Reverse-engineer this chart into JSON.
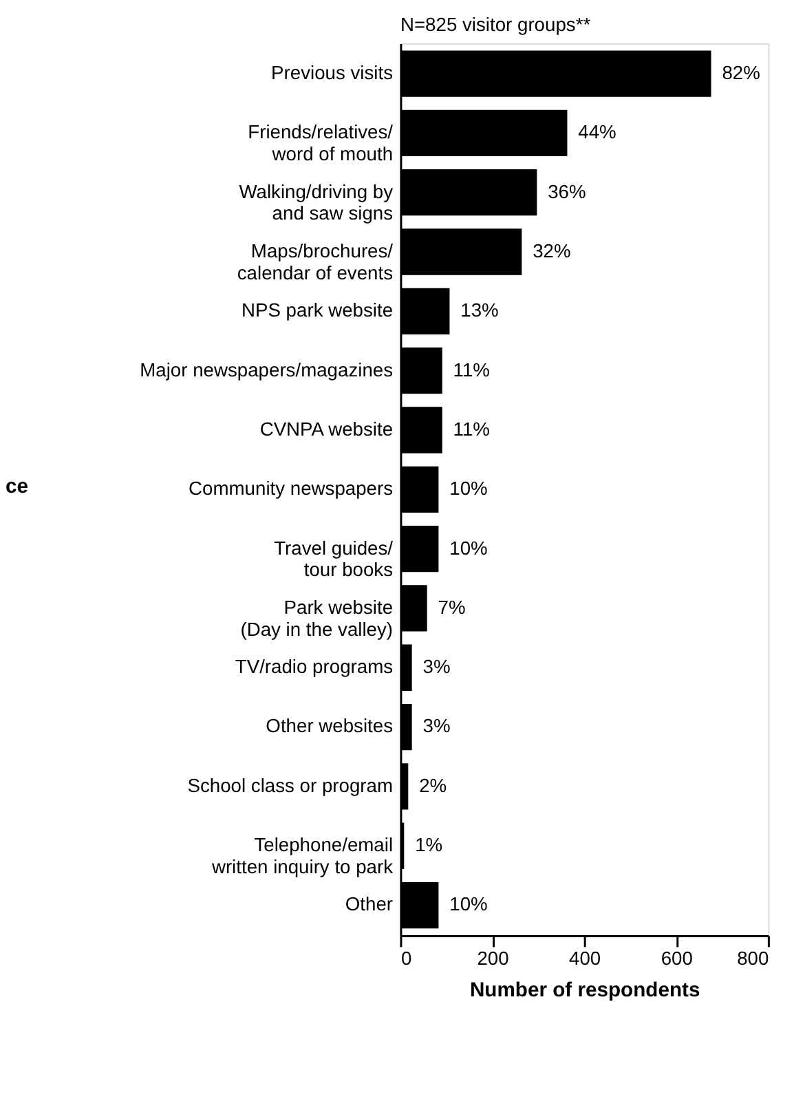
{
  "chart_data": {
    "type": "bar",
    "orientation": "horizontal",
    "title": "N=825 visitor groups**",
    "xlabel": "Number of respondents",
    "categories": [
      "Previous visits",
      "Friends/relatives/\nword of mouth",
      "Walking/driving by\nand saw signs",
      "Maps/brochures/\ncalendar of events",
      "NPS park website",
      "Major newspapers/magazines",
      "CVNPA website",
      "Community newspapers",
      "Travel guides/\ntour books",
      "Park website\n(Day in the valley)",
      "TV/radio programs",
      "Other websites",
      "School class or program",
      "Telephone/email\nwritten inquiry to park",
      "Other"
    ],
    "values": [
      676,
      363,
      297,
      264,
      107,
      91,
      91,
      83,
      83,
      58,
      25,
      25,
      17,
      8,
      83
    ],
    "annotations": [
      "ce",
      {
        "text": "82%",
        "x": 676,
        "y": "Previous visits"
      },
      {
        "text": "44%",
        "x": 363,
        "y": "Friends/relatives/\nword of mouth"
      },
      {
        "text": "36%",
        "x": 297,
        "y": "Walking/driving by\nand saw signs"
      },
      {
        "text": "32%",
        "x": 264,
        "y": "Maps/brochures/\ncalendar of events"
      },
      {
        "text": "13%",
        "x": 107,
        "y": "NPS park website"
      },
      {
        "text": "11%",
        "x": 91,
        "y": "Major newspapers/magazines"
      },
      {
        "text": "11%",
        "x": 91,
        "y": "CVNPA website"
      },
      {
        "text": "10%",
        "x": 83,
        "y": "Community newspapers"
      },
      {
        "text": "10%",
        "x": 83,
        "y": "Travel guides/\ntour books"
      },
      {
        "text": "7%",
        "x": 58,
        "y": "Park website\n(Day in the valley)"
      },
      {
        "text": "3%",
        "x": 25,
        "y": "TV/radio programs"
      },
      {
        "text": "3%",
        "x": 25,
        "y": "Other websites"
      },
      {
        "text": "2%",
        "x": 17,
        "y": "School class or program"
      },
      {
        "text": "1%",
        "x": 8,
        "y": "Telephone/email\nwritten inquiry to park"
      },
      {
        "text": "10%",
        "x": 83,
        "y": "Other"
      }
    ],
    "color": "#000000",
    "xlim": [
      0,
      800
    ],
    "xticks": [
      0,
      200,
      400,
      600,
      800
    ],
    "grid": false
  }
}
